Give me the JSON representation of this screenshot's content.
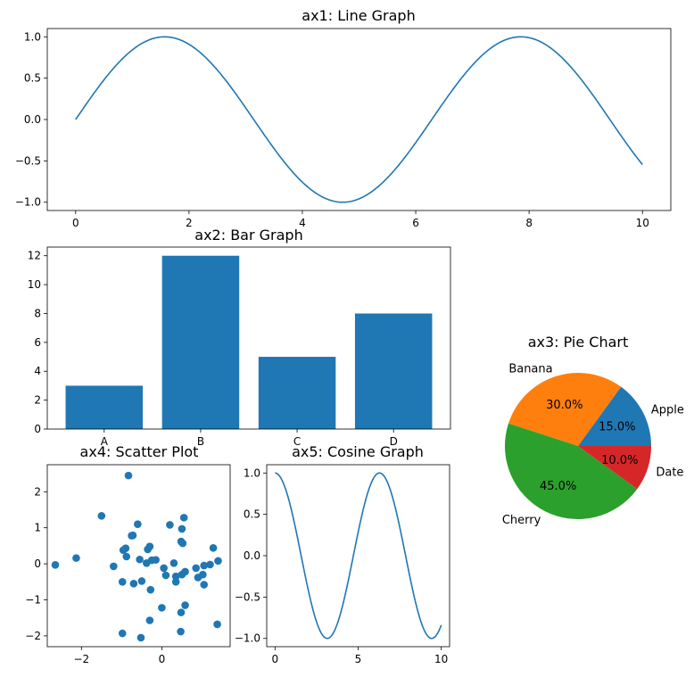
{
  "chart_data": [
    {
      "id": "ax1",
      "type": "line",
      "title": "ax1: Line Graph",
      "function": "sin",
      "x_range": [
        0,
        10
      ],
      "xlim": [
        -0.5,
        10.5
      ],
      "ylim": [
        -1.1,
        1.1
      ],
      "xticks": [
        0,
        2,
        4,
        6,
        8,
        10
      ],
      "yticks": [
        -1.0,
        -0.5,
        0.0,
        0.5,
        1.0
      ],
      "ytick_labels": [
        "−1.0",
        "−0.5",
        "0.0",
        "0.5",
        "1.0"
      ],
      "color": "#1f77b4"
    },
    {
      "id": "ax2",
      "type": "bar",
      "title": "ax2: Bar Graph",
      "categories": [
        "A",
        "B",
        "C",
        "D"
      ],
      "values": [
        3,
        12,
        5,
        8
      ],
      "ylim": [
        0,
        12.6
      ],
      "yticks": [
        0,
        2,
        4,
        6,
        8,
        10,
        12
      ],
      "color": "#1f77b4"
    },
    {
      "id": "ax3",
      "type": "pie",
      "title": "ax3: Pie Chart",
      "labels": [
        "Apple",
        "Banana",
        "Cherry",
        "Date"
      ],
      "values": [
        15,
        30,
        45,
        10
      ],
      "pct_labels": [
        "15.0%",
        "30.0%",
        "45.0%",
        "10.0%"
      ],
      "colors": [
        "#1f77b4",
        "#ff7f0e",
        "#2ca02c",
        "#d62728"
      ]
    },
    {
      "id": "ax4",
      "type": "scatter",
      "title": "ax4: Scatter Plot",
      "xlim": [
        -2.85,
        1.7
      ],
      "ylim": [
        -2.3,
        2.75
      ],
      "xticks": [
        -2,
        0
      ],
      "xtick_labels": [
        "−2",
        "0"
      ],
      "yticks": [
        -2,
        -1,
        0,
        1,
        2
      ],
      "ytick_labels": [
        "−2",
        "−1",
        "0",
        "1",
        "2"
      ],
      "color": "#1f77b4",
      "points": [
        [
          -0.83,
          2.45
        ],
        [
          -1.5,
          1.33
        ],
        [
          -0.6,
          1.1
        ],
        [
          0.2,
          1.08
        ],
        [
          0.55,
          1.28
        ],
        [
          0.5,
          0.97
        ],
        [
          -0.75,
          0.78
        ],
        [
          -0.72,
          0.79
        ],
        [
          0.48,
          0.62
        ],
        [
          0.52,
          0.57
        ],
        [
          -0.3,
          0.48
        ],
        [
          -0.35,
          0.4
        ],
        [
          -0.96,
          0.38
        ],
        [
          -0.9,
          0.43
        ],
        [
          1.28,
          0.44
        ],
        [
          -0.88,
          0.2
        ],
        [
          -0.55,
          0.12
        ],
        [
          -0.38,
          0.02
        ],
        [
          -0.25,
          0.1
        ],
        [
          -0.15,
          0.11
        ],
        [
          0.3,
          0.02
        ],
        [
          -2.65,
          -0.03
        ],
        [
          -2.13,
          0.16
        ],
        [
          -1.2,
          -0.07
        ],
        [
          0.05,
          -0.12
        ],
        [
          0.85,
          -0.12
        ],
        [
          1.05,
          -0.05
        ],
        [
          1.2,
          -0.02
        ],
        [
          1.4,
          0.08
        ],
        [
          0.1,
          -0.32
        ],
        [
          0.35,
          -0.35
        ],
        [
          0.5,
          -0.3
        ],
        [
          0.58,
          -0.22
        ],
        [
          0.9,
          -0.38
        ],
        [
          1.02,
          -0.3
        ],
        [
          -0.98,
          -0.5
        ],
        [
          -0.5,
          -0.48
        ],
        [
          -0.7,
          -0.55
        ],
        [
          0.35,
          -0.5
        ],
        [
          1.05,
          -0.58
        ],
        [
          -0.28,
          -0.72
        ],
        [
          0.58,
          -1.15
        ],
        [
          0.0,
          -1.22
        ],
        [
          0.48,
          -1.35
        ],
        [
          -0.3,
          -1.57
        ],
        [
          1.38,
          -1.68
        ],
        [
          -0.98,
          -1.93
        ],
        [
          -0.52,
          -2.05
        ],
        [
          0.47,
          -1.88
        ]
      ]
    },
    {
      "id": "ax5",
      "type": "line",
      "title": "ax5: Cosine Graph",
      "function": "cos",
      "x_range": [
        0,
        10
      ],
      "xlim": [
        -0.5,
        10.5
      ],
      "ylim": [
        -1.1,
        1.1
      ],
      "xticks": [
        0,
        5,
        10
      ],
      "yticks": [
        -1.0,
        -0.5,
        0.0,
        0.5,
        1.0
      ],
      "ytick_labels": [
        "−1.0",
        "−0.5",
        "0.0",
        "0.5",
        "1.0"
      ],
      "color": "#1f77b4"
    }
  ]
}
